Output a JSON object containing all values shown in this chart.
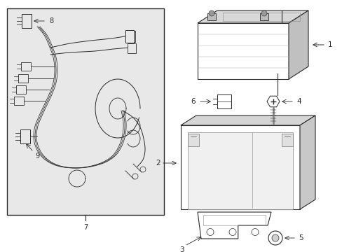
{
  "bg_color": "#e8e8e8",
  "line_color": "#2a2a2a",
  "white": "#ffffff",
  "fig_w": 4.89,
  "fig_h": 3.6,
  "dpi": 100
}
